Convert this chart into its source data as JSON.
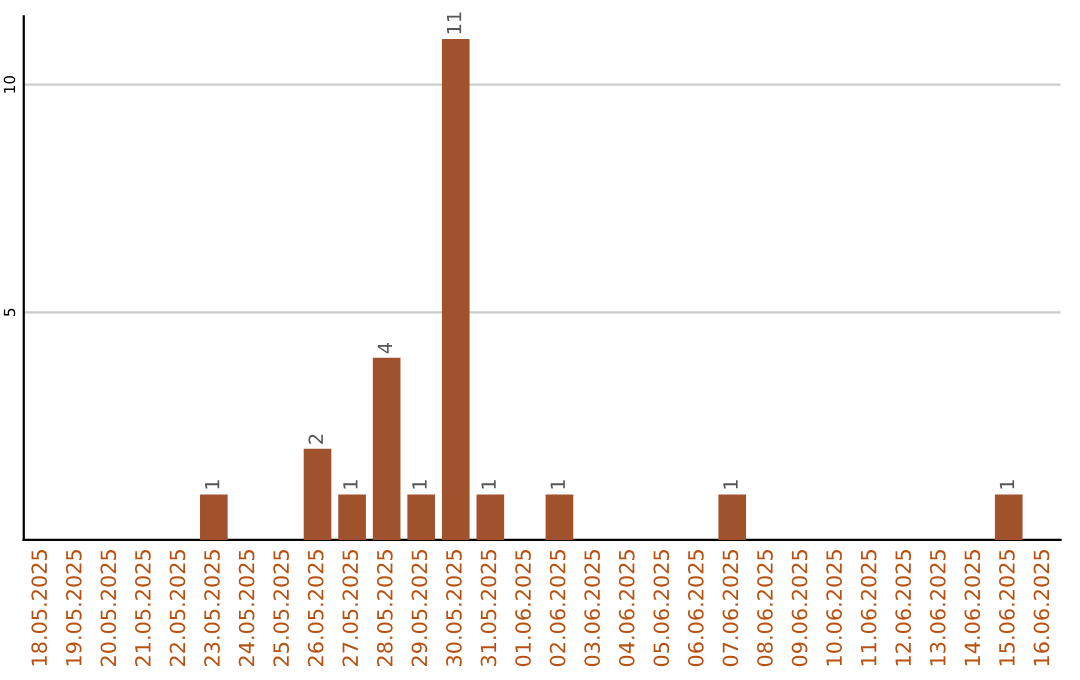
{
  "chart_data": {
    "type": "bar",
    "categories": [
      "18.05.2025",
      "19.05.2025",
      "20.05.2025",
      "21.05.2025",
      "22.05.2025",
      "23.05.2025",
      "24.05.2025",
      "25.05.2025",
      "26.05.2025",
      "27.05.2025",
      "28.05.2025",
      "29.05.2025",
      "30.05.2025",
      "31.05.2025",
      "01.06.2025",
      "02.06.2025",
      "03.06.2025",
      "04.06.2025",
      "05.06.2025",
      "06.06.2025",
      "07.06.2025",
      "08.06.2025",
      "09.06.2025",
      "10.06.2025",
      "11.06.2025",
      "12.06.2025",
      "13.06.2025",
      "14.06.2025",
      "15.06.2025",
      "16.06.2025"
    ],
    "values": [
      0,
      0,
      0,
      0,
      0,
      1,
      0,
      0,
      2,
      1,
      4,
      1,
      11,
      1,
      0,
      1,
      0,
      0,
      0,
      0,
      1,
      0,
      0,
      0,
      0,
      0,
      0,
      0,
      1,
      0
    ],
    "value_labels": [
      null,
      null,
      null,
      null,
      null,
      "1",
      null,
      null,
      "2",
      "1",
      "4",
      "1",
      "11",
      "1",
      null,
      "1",
      null,
      null,
      null,
      null,
      "1",
      null,
      null,
      null,
      null,
      null,
      null,
      null,
      "1",
      null
    ],
    "color": "#a0522d",
    "ylim": [
      0,
      11.5
    ],
    "yticks": [
      5,
      10
    ],
    "grid": "y"
  }
}
